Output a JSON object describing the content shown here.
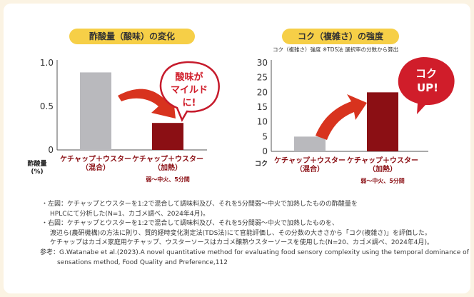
{
  "chart_data": [
    {
      "type": "bar",
      "title": "酢酸量（酸味）の変化",
      "ylabel": "酢酸量",
      "yunit": "(%)",
      "ylim": [
        0,
        1.0
      ],
      "yticks": [
        "0",
        "0.5",
        "1.0"
      ],
      "categories": [
        "ケチャップ＋ウスター（混合）",
        "ケチャップ＋ウスター（加熱）"
      ],
      "category_lines": [
        [
          "ケチャップ＋ウスター",
          "（混合）"
        ],
        [
          "ケチャップ＋ウスター",
          "（加熱）"
        ]
      ],
      "values": [
        0.89,
        0.31
      ],
      "colors": [
        "#b9b9bd",
        "#8b0f14"
      ],
      "note": "弱～中火、5分間",
      "callout": [
        "酸味が",
        "マイルド",
        "に!"
      ]
    },
    {
      "type": "bar",
      "title": "コク（複雑さ）の強度",
      "subtitle": "コク（複雑さ）強度 ※TDS法 選択率の分数から算出",
      "ylabel": "コク",
      "ylim": [
        0,
        30
      ],
      "yticks": [
        "0",
        "5",
        "10",
        "15",
        "20",
        "25",
        "30"
      ],
      "categories": [
        "ケチャップ＋ウスター（混合）",
        "ケチャップ＋ウスター（加熱）"
      ],
      "category_lines": [
        [
          "ケチャップ＋ウスター",
          "（混合）"
        ],
        [
          "ケチャップ＋ウスター",
          "（加熱）"
        ]
      ],
      "values": [
        5,
        20
      ],
      "colors": [
        "#b9b9bd",
        "#8b0f14"
      ],
      "note": "弱～中火、5分間",
      "callout": [
        "コク",
        "UP!"
      ]
    }
  ],
  "notes": [
    "・左図：ケチャップとウスターを1:2で混合して調味料及び、それを5分間弱～中火で加熱したものの酢酸量を",
    "HPLCにて分析した(N=1、カゴメ調べ、2024年4月)。",
    "・右図：ケチャップとウスターを1:2で混合して調味料及び、それを5分間弱～中火で加熱したものを、",
    "渡辺ら(農研機構)の方法に則り、質的経時変化測定法(TDS法)にて官能評価し、その分数の大きさから「コク(複雑さ)」を評価した。",
    "ケチャップはカゴメ家庭用ケチャップ、ウスターソースはカゴメ醸熟ウスターソースを使用した(N=20、カゴメ調べ、2024年4月)。",
    "参考：G.Watanabe et al.(2023).A novel quantitative method for evaluating food sensory complexity using the temporal dominance of",
    "sensations method, Food Quality and Preference,112"
  ]
}
